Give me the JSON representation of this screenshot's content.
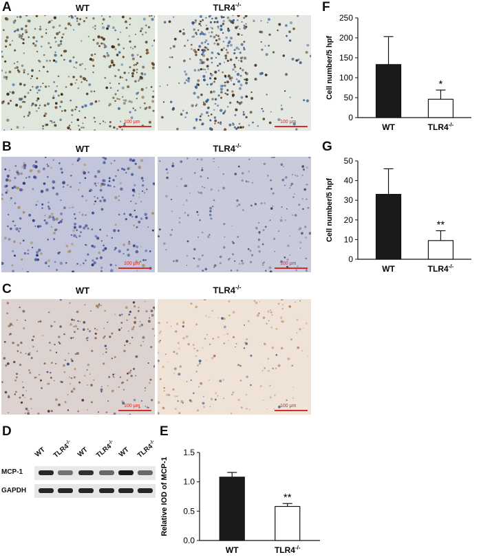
{
  "panels": {
    "A": {
      "letter": "A",
      "left_title": "WT",
      "right_title": "TLR4",
      "right_sup": "-/-",
      "scale_left": "100 μm",
      "scale_right": "100 μm"
    },
    "B": {
      "letter": "B",
      "left_title": "WT",
      "right_title": "TLR4",
      "right_sup": "-/-",
      "scale_left": "100 μm",
      "scale_right": "100 μm"
    },
    "C": {
      "letter": "C",
      "left_title": "WT",
      "right_title": "TLR4",
      "right_sup": "-/-",
      "scale_left": "100 μm",
      "scale_right": "100 μm"
    },
    "D": {
      "letter": "D",
      "lanes": [
        "WT",
        "TLR4",
        "WT",
        "TLR4",
        "WT",
        "TLR4"
      ],
      "lane_sup": "-/-",
      "rows": [
        "MCP-1",
        "GAPDH"
      ]
    },
    "E": {
      "letter": "E"
    },
    "F": {
      "letter": "F"
    },
    "G": {
      "letter": "G"
    }
  },
  "colors": {
    "wt_bar": "#1a1a1a",
    "ko_bar": "#ffffff",
    "scale": "#d42a2a"
  },
  "chart_data": [
    {
      "id": "F",
      "type": "bar",
      "categories": [
        "WT",
        "TLR4-/-"
      ],
      "values": [
        133,
        46
      ],
      "error": [
        70,
        23
      ],
      "annotations": [
        "",
        "*"
      ],
      "ylabel": "Cell number/5 hpf",
      "ylim": [
        0,
        250
      ],
      "yticks": [
        0,
        50,
        100,
        150,
        200,
        250
      ]
    },
    {
      "id": "G",
      "type": "bar",
      "categories": [
        "WT",
        "TLR4-/-"
      ],
      "values": [
        33,
        9.5
      ],
      "error": [
        13,
        5
      ],
      "annotations": [
        "",
        "**"
      ],
      "ylabel": "Cell number/5 hpf",
      "ylim": [
        0,
        50
      ],
      "yticks": [
        0,
        10,
        20,
        30,
        40,
        50
      ]
    },
    {
      "id": "E",
      "type": "bar",
      "categories": [
        "WT",
        "TLR4-/-"
      ],
      "values": [
        1.08,
        0.58
      ],
      "error": [
        0.08,
        0.05
      ],
      "annotations": [
        "",
        "**"
      ],
      "ylabel": "Relative IOD of MCP-1",
      "ylim": [
        0,
        1.5
      ],
      "yticks": [
        "0.0",
        "0.5",
        "1.0",
        "1.5"
      ]
    }
  ]
}
